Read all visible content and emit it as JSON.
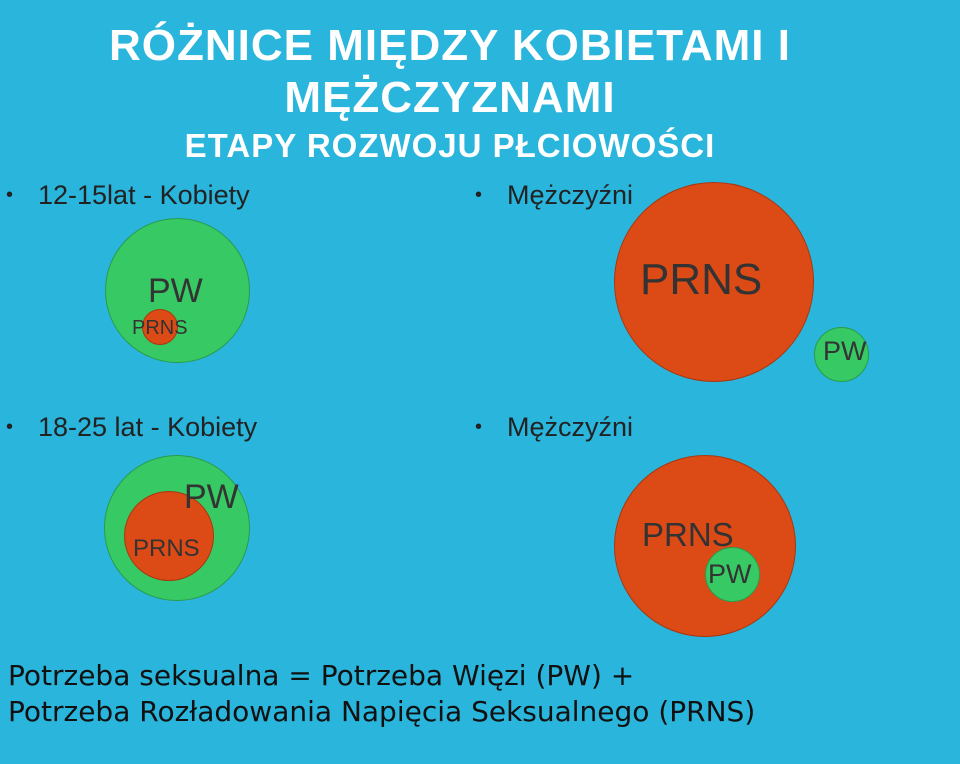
{
  "slide": {
    "title_line1": "RÓŻNICE MIĘDZY KOBIETAMI I",
    "title_line2": "MĘŻCZYZNAMI",
    "subtitle": "ETAPY ROZWOJU PŁCIOWOŚCI"
  },
  "sections": {
    "top_left": {
      "bullet": "•",
      "heading": "12-15lat - Kobiety",
      "pw": "PW",
      "prns": "PRNS"
    },
    "top_right": {
      "bullet": "•",
      "heading": "Mężczyźni",
      "pw": "PW",
      "prns": "PRNS"
    },
    "bottom_left": {
      "bullet": "•",
      "heading": "18-25 lat - Kobiety",
      "pw": "PW",
      "prns": "PRNS"
    },
    "bottom_right": {
      "bullet": "•",
      "heading": "Mężczyźni",
      "pw": "PW",
      "prns": "PRNS"
    }
  },
  "footer": {
    "line1": "Potrzeba seksualna = Potrzeba Więzi (PW) +",
    "line2": "Potrzeba Rozładowania Napięcia Seksualnego (PRNS)"
  },
  "colors": {
    "background": "#29b5dc",
    "pw_green": "#37c964",
    "prns_red": "#dc4a16",
    "title_white": "#ffffff"
  }
}
